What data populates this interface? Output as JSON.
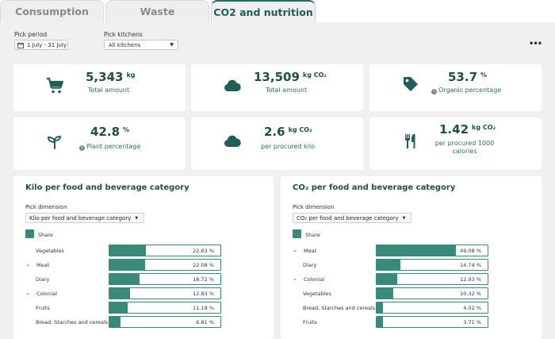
{
  "tabs": [
    {
      "label": "Consumption",
      "active": false
    },
    {
      "label": "Waste",
      "active": false
    },
    {
      "label": "CO2 and nutrition",
      "active": true
    }
  ],
  "filters": {
    "period_label": "Pick period",
    "period_value": "1 July - 31 July",
    "kitchens_label": "Pick kitchens",
    "kitchens_value": "All kitchens",
    "more_icon": "more-dots-icon"
  },
  "kpis": [
    {
      "icon": "cart-icon",
      "value": "5,343",
      "unit": "kg",
      "label": "Total amount",
      "info": false
    },
    {
      "icon": "cloud-icon",
      "value": "13,509",
      "unit": "kg CO₂",
      "label": "Total amount",
      "info": false
    },
    {
      "icon": "tag-icon",
      "value": "53.7",
      "unit": "%",
      "label": "Organic percentage",
      "info": true
    },
    {
      "icon": "sprout-icon",
      "value": "42.8",
      "unit": "%",
      "label": "Plant percentage",
      "info": true
    },
    {
      "icon": "cloud-icon",
      "value": "2.6",
      "unit": "kg CO₂",
      "label": "per procured kilo",
      "info": false
    },
    {
      "icon": "fork-knife-icon",
      "value": "1.42",
      "unit": "kg CO₂",
      "label": "per procured 1000 calories",
      "info": false
    }
  ],
  "charts": [
    {
      "title": "Kilo per food and beverage category",
      "dimension_label": "Pick dimension",
      "dimension_value": "Kilo per food and beverage category",
      "legend": "Share",
      "rows": [
        {
          "label": "Vegetables",
          "value": "22.63 %",
          "share": 0.2263,
          "expandable": false
        },
        {
          "label": "Meat",
          "value": "22.08 %",
          "share": 0.2208,
          "expandable": true
        },
        {
          "label": "Diary",
          "value": "18.72 %",
          "share": 0.1872,
          "expandable": false
        },
        {
          "label": "Colonial",
          "value": "12.83 %",
          "share": 0.1283,
          "expandable": true
        },
        {
          "label": "Fruits",
          "value": "11.19 %",
          "share": 0.1119,
          "expandable": false
        },
        {
          "label": "Bread, Starches and cereals",
          "value": "6.81 %",
          "share": 0.0681,
          "expandable": false
        }
      ]
    },
    {
      "title": "CO₂ per food and beverage category",
      "dimension_label": "Pick dimension",
      "dimension_value": "CO₂ per food and beverage category",
      "legend": "Share",
      "rows": [
        {
          "label": "Meat",
          "value": "49.08 %",
          "share": 0.4908,
          "expandable": true
        },
        {
          "label": "Diary",
          "value": "14.74 %",
          "share": 0.1474,
          "expandable": false
        },
        {
          "label": "Colonial",
          "value": "12.93 %",
          "share": 0.1293,
          "expandable": true
        },
        {
          "label": "Vegetables",
          "value": "10.32 %",
          "share": 0.1032,
          "expandable": false
        },
        {
          "label": "Bread, Starches and cereals",
          "value": "4.02 %",
          "share": 0.0402,
          "expandable": false
        },
        {
          "label": "Fruits",
          "value": "3.71 %",
          "share": 0.0371,
          "expandable": false
        }
      ]
    }
  ],
  "colors": {
    "accent": "#1f6e62",
    "bar": "#3a8a7a",
    "background": "#f0f0f0"
  }
}
